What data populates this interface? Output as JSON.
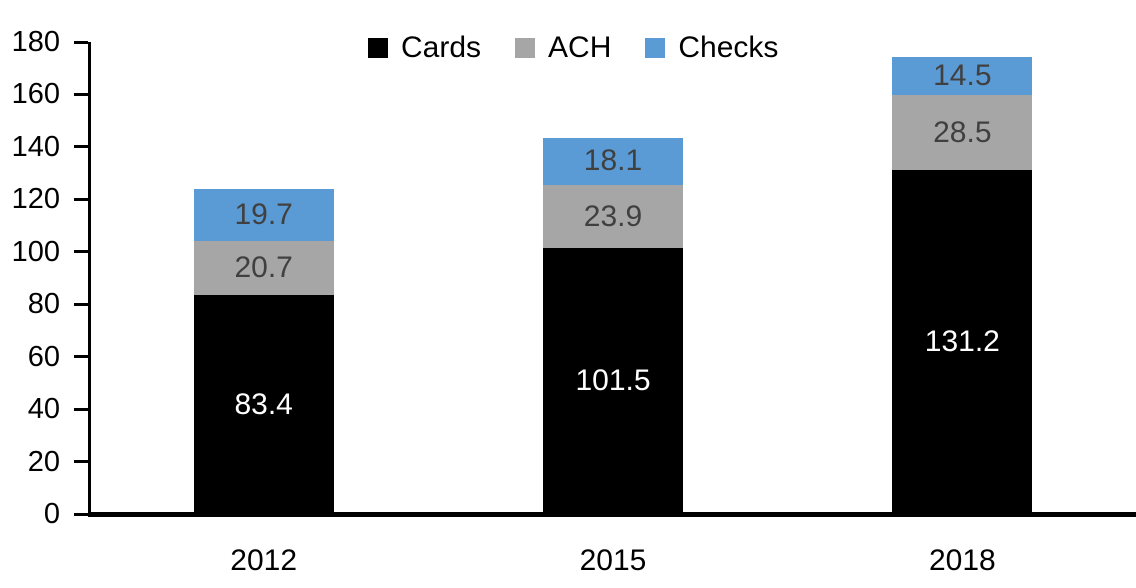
{
  "chart_data": {
    "type": "bar",
    "stacked": true,
    "title": "",
    "xlabel": "",
    "ylabel": "",
    "categories": [
      "2012",
      "2015",
      "2018"
    ],
    "series": [
      {
        "name": "Cards",
        "color": "#000000",
        "label_color": "#ffffff",
        "values": [
          83.4,
          101.5,
          131.2
        ]
      },
      {
        "name": "ACH",
        "color": "#a6a6a6",
        "label_color": "#404040",
        "values": [
          20.7,
          23.9,
          28.5
        ]
      },
      {
        "name": "Checks",
        "color": "#5b9bd5",
        "label_color": "#404040",
        "values": [
          19.7,
          18.1,
          14.5
        ]
      }
    ],
    "ylim": [
      0,
      180
    ],
    "ytick_step": 20,
    "ytick_labels": [
      "0",
      "20",
      "40",
      "60",
      "80",
      "100",
      "120",
      "140",
      "160",
      "180"
    ],
    "legend_position": "top",
    "grid": false,
    "axis_color": "#000000",
    "text_color": "#000000"
  }
}
